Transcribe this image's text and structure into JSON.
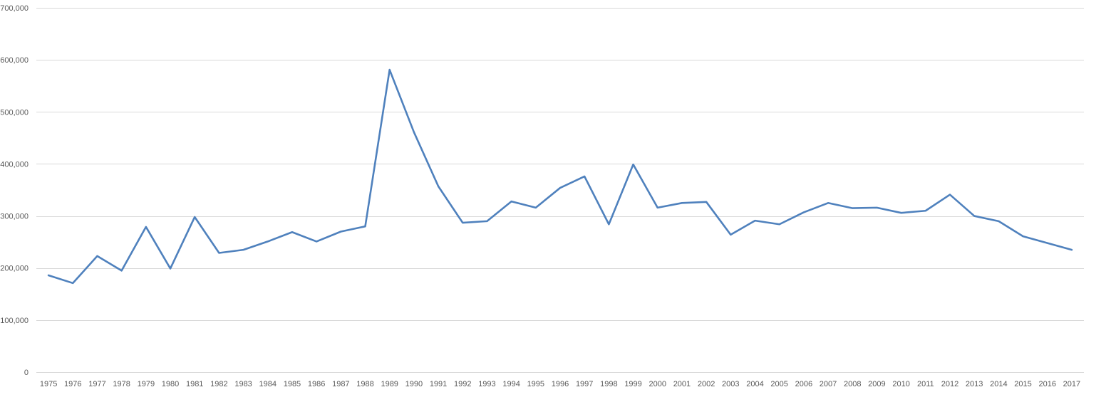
{
  "chart_data": {
    "type": "line",
    "title": "",
    "xlabel": "",
    "ylabel": "",
    "ylim": [
      0,
      700000
    ],
    "y_ticks": [
      0,
      100000,
      200000,
      300000,
      400000,
      500000,
      600000,
      700000
    ],
    "y_tick_labels": [
      "0",
      "100,000",
      "200,000",
      "300,000",
      "400,000",
      "500,000",
      "600,000",
      "700,000"
    ],
    "grid": true,
    "legend": "none",
    "categories": [
      "1975",
      "1976",
      "1977",
      "1978",
      "1979",
      "1980",
      "1981",
      "1982",
      "1983",
      "1984",
      "1985",
      "1986",
      "1987",
      "1988",
      "1989",
      "1990",
      "1991",
      "1992",
      "1993",
      "1994",
      "1995",
      "1996",
      "1997",
      "1998",
      "1999",
      "2000",
      "2001",
      "2002",
      "2003",
      "2004",
      "2005",
      "2006",
      "2007",
      "2008",
      "2009",
      "2010",
      "2011",
      "2012",
      "2013",
      "2014",
      "2015",
      "2016",
      "2017"
    ],
    "series": [
      {
        "color": "#4f81bd",
        "values": [
          186000,
          171000,
          223000,
          195000,
          279000,
          199000,
          298000,
          229000,
          235000,
          251000,
          269000,
          251000,
          270000,
          280000,
          581000,
          461000,
          357000,
          287000,
          290000,
          328000,
          316000,
          354000,
          376000,
          284000,
          399000,
          316000,
          325000,
          327000,
          264000,
          291000,
          284000,
          307000,
          325000,
          315000,
          316000,
          306000,
          310000,
          341000,
          300000,
          290000,
          261000,
          248000,
          235000
        ]
      }
    ]
  }
}
